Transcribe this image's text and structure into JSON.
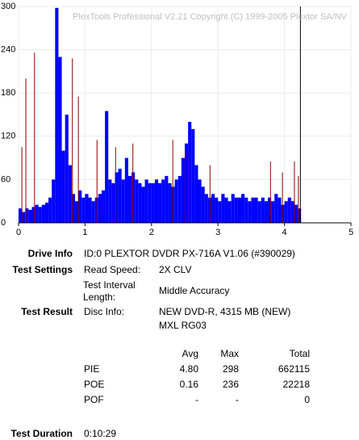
{
  "chart_data": {
    "type": "bar",
    "watermark": "PlexTools Professional V2.21 Copyright (C) 1999-2005 Plextor SA/NV",
    "xlim": [
      0,
      5
    ],
    "xticks": [
      0,
      1,
      2,
      3,
      4,
      5
    ],
    "ylim": [
      0,
      300
    ],
    "yticks": [
      0,
      60,
      120,
      180,
      240,
      300
    ],
    "grid": true,
    "end_marker": 4.24,
    "series": [
      {
        "color": "#0000ff",
        "bar_width": 0.05,
        "x": [
          0,
          0.05,
          0.1,
          0.15,
          0.2,
          0.25,
          0.3,
          0.35,
          0.4,
          0.45,
          0.5,
          0.55,
          0.6,
          0.65,
          0.7,
          0.75,
          0.8,
          0.85,
          0.9,
          0.95,
          1.0,
          1.05,
          1.1,
          1.15,
          1.2,
          1.25,
          1.3,
          1.35,
          1.4,
          1.45,
          1.5,
          1.55,
          1.6,
          1.65,
          1.7,
          1.75,
          1.8,
          1.85,
          1.9,
          1.95,
          2.0,
          2.05,
          2.1,
          2.15,
          2.2,
          2.25,
          2.3,
          2.35,
          2.4,
          2.45,
          2.5,
          2.55,
          2.6,
          2.65,
          2.7,
          2.75,
          2.8,
          2.85,
          2.9,
          2.95,
          3.0,
          3.05,
          3.1,
          3.15,
          3.2,
          3.25,
          3.3,
          3.35,
          3.4,
          3.45,
          3.5,
          3.55,
          3.6,
          3.65,
          3.7,
          3.75,
          3.8,
          3.85,
          3.9,
          3.95,
          4.0,
          4.05,
          4.1,
          4.15,
          4.2
        ],
        "values": [
          20,
          15,
          20,
          18,
          22,
          25,
          22,
          25,
          28,
          35,
          60,
          298,
          230,
          100,
          150,
          80,
          40,
          30,
          45,
          35,
          40,
          35,
          30,
          35,
          40,
          45,
          155,
          60,
          55,
          70,
          75,
          60,
          90,
          65,
          70,
          60,
          55,
          50,
          60,
          55,
          55,
          60,
          55,
          60,
          65,
          55,
          50,
          60,
          65,
          90,
          110,
          140,
          130,
          80,
          60,
          50,
          40,
          35,
          40,
          35,
          30,
          40,
          35,
          30,
          40,
          35,
          35,
          40,
          35,
          30,
          35,
          35,
          30,
          35,
          30,
          35,
          30,
          40,
          35,
          25,
          30,
          35,
          30,
          25,
          20
        ]
      },
      {
        "color": "#8b0000",
        "bar_width": 0.012,
        "x": [
          0.05,
          0.11,
          0.24,
          0.81,
          0.9,
          1.18,
          1.46,
          1.72,
          2.32,
          2.51,
          2.88,
          3.79,
          3.97,
          4.15,
          4.21
        ],
        "values": [
          105,
          200,
          236,
          228,
          175,
          115,
          105,
          110,
          115,
          100,
          80,
          85,
          70,
          85,
          65
        ]
      }
    ]
  },
  "report": {
    "drive_info": {
      "label": "Drive Info",
      "value": "ID:0 PLEXTOR DVDR PX-716A V1.06 (#390029)"
    },
    "test_settings": {
      "label": "Test Settings",
      "rows": [
        [
          "Read Speed:",
          "2X CLV"
        ],
        [
          "Test Interval Length:",
          "Middle Accuracy"
        ]
      ]
    },
    "test_result": {
      "label": "Test Result",
      "key": "Disc Info:",
      "lines": [
        "NEW DVD-R, 4315 MB (NEW)",
        "MXL RG03"
      ]
    },
    "stats": {
      "header": [
        "Avg",
        "Max",
        "Total"
      ],
      "rows": [
        [
          "PIE",
          "4.80",
          298,
          662115
        ],
        [
          "POE",
          0.16,
          236,
          22218
        ],
        [
          "POF",
          "-",
          "-",
          0
        ]
      ]
    },
    "test_duration": {
      "label": "Test Duration",
      "value": "0:10:29"
    }
  }
}
